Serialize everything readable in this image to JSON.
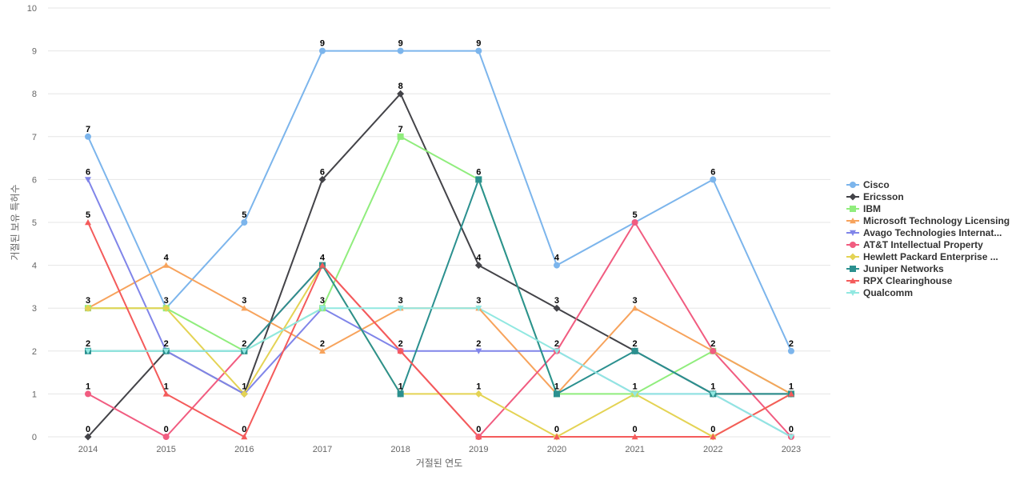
{
  "chart_data": {
    "type": "line",
    "title": "",
    "xlabel": "거절된 연도",
    "ylabel": "거절된 보유 특허수",
    "x": [
      "2014",
      "2015",
      "2016",
      "2017",
      "2018",
      "2019",
      "2020",
      "2021",
      "2022",
      "2023"
    ],
    "ylim": [
      0,
      10
    ],
    "yticks": [
      0,
      1,
      2,
      3,
      4,
      5,
      6,
      7,
      8,
      9,
      10
    ],
    "grid": true,
    "legend_position": "right",
    "series": [
      {
        "name": "Cisco",
        "color": "#7cb5ec",
        "marker": "circle",
        "values": [
          7,
          3,
          5,
          9,
          9,
          9,
          4,
          5,
          6,
          2
        ]
      },
      {
        "name": "Ericsson",
        "color": "#434348",
        "marker": "diamond",
        "values": [
          0,
          2,
          1,
          6,
          8,
          4,
          3,
          2,
          1,
          1
        ]
      },
      {
        "name": "IBM",
        "color": "#90ed7d",
        "marker": "square",
        "values": [
          3,
          3,
          2,
          3,
          7,
          6,
          1,
          1,
          2,
          1
        ]
      },
      {
        "name": "Microsoft Technology Licensing",
        "color": "#f7a35c",
        "marker": "triangle",
        "values": [
          3,
          4,
          3,
          2,
          3,
          3,
          1,
          3,
          2,
          1
        ]
      },
      {
        "name": "Avago Technologies Internat...",
        "color": "#8085e9",
        "marker": "triangle-down",
        "values": [
          6,
          2,
          1,
          3,
          2,
          2,
          2,
          1,
          1,
          0
        ]
      },
      {
        "name": "AT&T Intellectual Property",
        "color": "#f15c80",
        "marker": "circle",
        "values": [
          1,
          0,
          2,
          4,
          2,
          0,
          2,
          5,
          2,
          0
        ]
      },
      {
        "name": "Hewlett Packard Enterprise ...",
        "color": "#e4d354",
        "marker": "diamond",
        "values": [
          3,
          3,
          1,
          4,
          1,
          1,
          0,
          1,
          0,
          1
        ]
      },
      {
        "name": "Juniper Networks",
        "color": "#2b908f",
        "marker": "square",
        "values": [
          2,
          2,
          2,
          4,
          1,
          6,
          1,
          2,
          1,
          1
        ]
      },
      {
        "name": "RPX Clearinghouse",
        "color": "#f45b5b",
        "marker": "triangle",
        "values": [
          5,
          1,
          0,
          4,
          2,
          0,
          0,
          0,
          0,
          1
        ]
      },
      {
        "name": "Qualcomm",
        "color": "#91e8e1",
        "marker": "triangle-down",
        "values": [
          2,
          2,
          2,
          3,
          3,
          3,
          2,
          1,
          1,
          0
        ]
      }
    ],
    "point_labels": [
      {
        "x": "2014",
        "text": "7",
        "series": "Cisco"
      },
      {
        "x": "2014",
        "text": "6",
        "series": "Avago Technologies Internat..."
      },
      {
        "x": "2014",
        "text": "5",
        "series": "RPX Clearinghouse"
      },
      {
        "x": "2014",
        "text": "3",
        "series": "IBM"
      },
      {
        "x": "2014",
        "text": "2",
        "series": "Juniper Networks"
      },
      {
        "x": "2014",
        "text": "1",
        "series": "AT&T Intellectual Property"
      },
      {
        "x": "2014",
        "text": "0",
        "series": "Ericsson"
      },
      {
        "x": "2015",
        "text": "4",
        "series": "Microsoft Technology Licensing"
      },
      {
        "x": "2015",
        "text": "3",
        "series": "Cisco"
      },
      {
        "x": "2015",
        "text": "2",
        "series": "Ericsson"
      },
      {
        "x": "2015",
        "text": "1",
        "series": "RPX Clearinghouse"
      },
      {
        "x": "2015",
        "text": "0",
        "series": "AT&T Intellectual Property"
      },
      {
        "x": "2016",
        "text": "5",
        "series": "Cisco"
      },
      {
        "x": "2016",
        "text": "3",
        "series": "Microsoft Technology Licensing"
      },
      {
        "x": "2016",
        "text": "2",
        "series": "IBM"
      },
      {
        "x": "2016",
        "text": "1",
        "series": "Ericsson"
      },
      {
        "x": "2016",
        "text": "0",
        "series": "RPX Clearinghouse"
      },
      {
        "x": "2017",
        "text": "9",
        "series": "Cisco"
      },
      {
        "x": "2017",
        "text": "6",
        "series": "Ericsson"
      },
      {
        "x": "2017",
        "text": "4",
        "series": "Juniper Networks"
      },
      {
        "x": "2017",
        "text": "3",
        "series": "Avago Technologies Internat..."
      },
      {
        "x": "2017",
        "text": "2",
        "series": "Microsoft Technology Licensing"
      },
      {
        "x": "2018",
        "text": "9",
        "series": "Cisco"
      },
      {
        "x": "2018",
        "text": "8",
        "series": "Ericsson"
      },
      {
        "x": "2018",
        "text": "7",
        "series": "IBM"
      },
      {
        "x": "2018",
        "text": "3",
        "series": "Microsoft Technology Licensing"
      },
      {
        "x": "2018",
        "text": "2",
        "series": "AT&T Intellectual Property"
      },
      {
        "x": "2018",
        "text": "1",
        "series": "Juniper Networks"
      },
      {
        "x": "2019",
        "text": "9",
        "series": "Cisco"
      },
      {
        "x": "2019",
        "text": "6",
        "series": "Juniper Networks"
      },
      {
        "x": "2019",
        "text": "4",
        "series": "Ericsson"
      },
      {
        "x": "2019",
        "text": "3",
        "series": "Qualcomm"
      },
      {
        "x": "2019",
        "text": "2",
        "series": "Avago Technologies Internat..."
      },
      {
        "x": "2019",
        "text": "1",
        "series": "Hewlett Packard Enterprise ..."
      },
      {
        "x": "2019",
        "text": "0",
        "series": "RPX Clearinghouse"
      },
      {
        "x": "2020",
        "text": "4",
        "series": "Cisco"
      },
      {
        "x": "2020",
        "text": "3",
        "series": "Ericsson"
      },
      {
        "x": "2020",
        "text": "2",
        "series": "AT&T Intellectual Property"
      },
      {
        "x": "2020",
        "text": "1",
        "series": "Juniper Networks"
      },
      {
        "x": "2020",
        "text": "0",
        "series": "Hewlett Packard Enterprise ..."
      },
      {
        "x": "2021",
        "text": "5",
        "series": "AT&T Intellectual Property"
      },
      {
        "x": "2021",
        "text": "3",
        "series": "Microsoft Technology Licensing"
      },
      {
        "x": "2021",
        "text": "2",
        "series": "Juniper Networks"
      },
      {
        "x": "2021",
        "text": "1",
        "series": "Hewlett Packard Enterprise ..."
      },
      {
        "x": "2021",
        "text": "0",
        "series": "RPX Clearinghouse"
      },
      {
        "x": "2022",
        "text": "6",
        "series": "Cisco"
      },
      {
        "x": "2022",
        "text": "2",
        "series": "IBM"
      },
      {
        "x": "2022",
        "text": "1",
        "series": "Juniper Networks"
      },
      {
        "x": "2022",
        "text": "0",
        "series": "RPX Clearinghouse"
      },
      {
        "x": "2023",
        "text": "2",
        "series": "Cisco"
      },
      {
        "x": "2023",
        "text": "1",
        "series": "Juniper Networks"
      },
      {
        "x": "2023",
        "text": "0",
        "series": "Qualcomm"
      }
    ]
  }
}
